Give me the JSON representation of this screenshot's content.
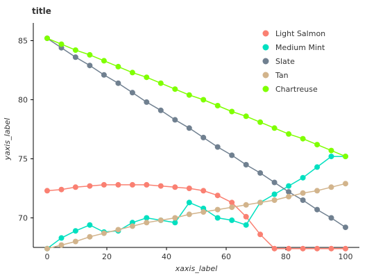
{
  "chart_data": {
    "type": "line",
    "title": "title",
    "xlabel": "xaxis_label",
    "ylabel": "yaxis_label",
    "xlim": [
      0,
      100
    ],
    "ylim": [
      67.5,
      86.5
    ],
    "xticks": [
      0,
      20,
      40,
      60,
      80,
      100
    ],
    "yticks": [
      70,
      75,
      80,
      85
    ],
    "grid": false,
    "legend_position": "top-right",
    "series": [
      {
        "name": "Light Salmon",
        "color": "#FA8072",
        "x": [
          0,
          4.76,
          9.52,
          14.29,
          19.05,
          23.81,
          28.57,
          33.33,
          38.1,
          42.86,
          47.62,
          52.38,
          57.14,
          61.9,
          66.67,
          71.43,
          76.19,
          80.95,
          85.71,
          90.48,
          95.24,
          100
        ],
        "y": [
          72.3,
          72.4,
          72.6,
          72.7,
          72.8,
          72.8,
          72.8,
          72.8,
          72.7,
          72.6,
          72.5,
          72.3,
          71.9,
          71.3,
          70.1,
          68.6,
          67.4,
          67.4,
          67.4,
          67.4,
          67.4,
          67.4
        ]
      },
      {
        "name": "Medium Mint",
        "color": "#00E0C0",
        "x": [
          0,
          4.76,
          9.52,
          14.29,
          19.05,
          23.81,
          28.57,
          33.33,
          38.1,
          42.86,
          47.62,
          52.38,
          57.14,
          61.9,
          66.67,
          71.43,
          76.19,
          80.95,
          85.71,
          90.48,
          95.24,
          100
        ],
        "y": [
          67.4,
          68.3,
          68.9,
          69.4,
          68.8,
          68.9,
          69.6,
          70.0,
          69.8,
          69.6,
          71.3,
          70.8,
          70.0,
          69.8,
          69.4,
          71.3,
          72.0,
          72.7,
          73.4,
          74.3,
          75.2,
          75.2
        ]
      },
      {
        "name": "Slate",
        "color": "#708090",
        "x": [
          0,
          4.76,
          9.52,
          14.29,
          19.05,
          23.81,
          28.57,
          33.33,
          38.1,
          42.86,
          47.62,
          52.38,
          57.14,
          61.9,
          66.67,
          71.43,
          76.19,
          80.95,
          85.71,
          90.48,
          95.24,
          100
        ],
        "y": [
          85.2,
          84.4,
          83.6,
          82.9,
          82.1,
          81.4,
          80.6,
          79.8,
          79.1,
          78.3,
          77.6,
          76.8,
          76.0,
          75.3,
          74.5,
          73.8,
          73.0,
          72.2,
          71.5,
          70.7,
          70.0,
          69.2
        ]
      },
      {
        "name": "Tan",
        "color": "#D2B48C",
        "x": [
          0,
          4.76,
          9.52,
          14.29,
          19.05,
          23.81,
          28.57,
          33.33,
          38.1,
          42.86,
          47.62,
          52.38,
          57.14,
          61.9,
          66.67,
          71.43,
          76.19,
          80.95,
          85.71,
          90.48,
          95.24,
          100
        ],
        "y": [
          67.4,
          67.7,
          68.0,
          68.4,
          68.7,
          69.0,
          69.3,
          69.6,
          69.8,
          70.0,
          70.3,
          70.5,
          70.7,
          70.9,
          71.1,
          71.3,
          71.5,
          71.8,
          72.1,
          72.3,
          72.6,
          72.9
        ]
      },
      {
        "name": "Chartreuse",
        "color": "#7FFF00",
        "x": [
          0,
          4.76,
          9.52,
          14.29,
          19.05,
          23.81,
          28.57,
          33.33,
          38.1,
          42.86,
          47.62,
          52.38,
          57.14,
          61.9,
          66.67,
          71.43,
          76.19,
          80.95,
          85.71,
          90.48,
          95.24,
          100
        ],
        "y": [
          85.2,
          84.7,
          84.2,
          83.8,
          83.3,
          82.8,
          82.3,
          81.9,
          81.4,
          80.9,
          80.4,
          80.0,
          79.5,
          79.0,
          78.6,
          78.1,
          77.6,
          77.1,
          76.7,
          76.2,
          75.7,
          75.2
        ]
      }
    ]
  }
}
